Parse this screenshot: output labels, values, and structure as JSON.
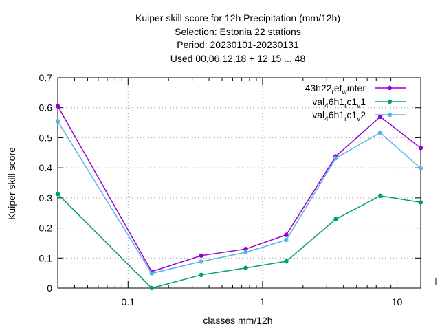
{
  "chart_data": {
    "type": "line",
    "title_lines": [
      "Kuiper skill score  for 12h Precipitation (mm/12h)",
      "Selection: Estonia      22 stations",
      "Period: 20230101-20230131",
      "Used  00,06,12,18  + 12 15 ... 48"
    ],
    "xlabel": "classes mm/12h",
    "ylabel": "Kuiper skill score",
    "x_scale": "log",
    "xlim": [
      0.03,
      15
    ],
    "ylim": [
      0,
      0.7
    ],
    "x_ticks": [
      {
        "value": 0.1,
        "label": "0.1"
      },
      {
        "value": 1,
        "label": "1"
      },
      {
        "value": 10,
        "label": "10"
      }
    ],
    "y_ticks": [
      {
        "value": 0,
        "label": "0"
      },
      {
        "value": 0.1,
        "label": "0.1"
      },
      {
        "value": 0.2,
        "label": "0.2"
      },
      {
        "value": 0.3,
        "label": "0.3"
      },
      {
        "value": 0.4,
        "label": "0.4"
      },
      {
        "value": 0.5,
        "label": "0.5"
      },
      {
        "value": 0.6,
        "label": "0.6"
      },
      {
        "value": 0.7,
        "label": "0.7"
      }
    ],
    "grid": true,
    "legend_position": "top-right",
    "x": [
      0.03,
      0.15,
      0.35,
      0.75,
      1.5,
      3.5,
      7.5,
      15
    ],
    "series": [
      {
        "name": "43h22",
        "name_sub": "r",
        "name_mid": "ef",
        "name_sub2": "w",
        "name_end": "inter",
        "color": "#9400d3",
        "values": [
          0.605,
          0.055,
          0.108,
          0.13,
          0.177,
          0.438,
          0.57,
          0.466
        ]
      },
      {
        "name": "val",
        "name_sub": "4",
        "name_mid": "6h1",
        "name_sub2": "r",
        "name_mid2": "c1",
        "name_sub3": "v",
        "name_end": "1",
        "color": "#009e73",
        "values": [
          0.313,
          0.0,
          0.044,
          0.067,
          0.089,
          0.229,
          0.307,
          0.285
        ]
      },
      {
        "name": "val",
        "name_sub": "4",
        "name_mid": "6h1",
        "name_sub2": "r",
        "name_mid2": "c1",
        "name_sub3": "v",
        "name_end": "2",
        "color": "#56b4e9",
        "values": [
          0.555,
          0.049,
          0.088,
          0.119,
          0.16,
          0.432,
          0.517,
          0.398
        ]
      }
    ]
  }
}
